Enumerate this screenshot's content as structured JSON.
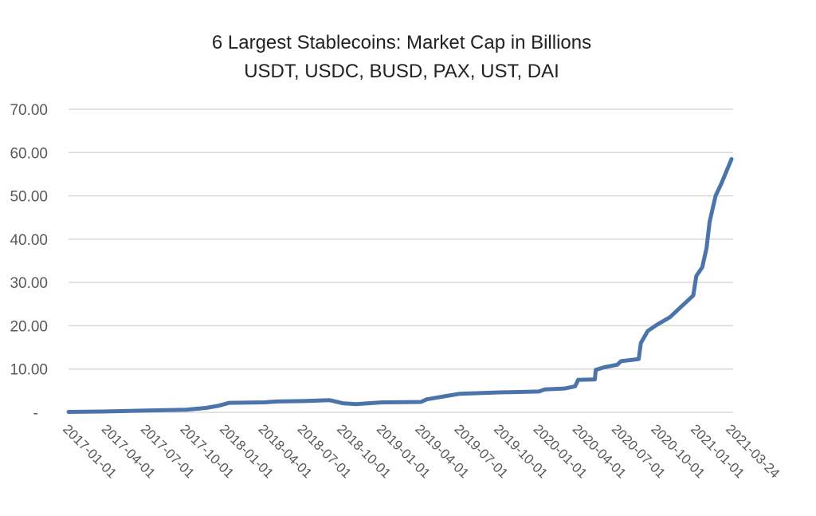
{
  "chart_data": {
    "type": "line",
    "title": "6 Largest Stablecoins: Market Cap in Billions",
    "subtitle": "USDT, USDC, BUSD, PAX, UST, DAI",
    "xlabel": "",
    "ylabel": "",
    "ylim": [
      0,
      70
    ],
    "yticks": [
      0,
      10,
      20,
      30,
      40,
      50,
      60,
      70
    ],
    "ytick_labels": [
      "-",
      "10.00",
      "20.00",
      "30.00",
      "40.00",
      "50.00",
      "60.00",
      "70.00"
    ],
    "xlim": [
      "2017-01-01",
      "2021-03-24"
    ],
    "xtick_labels": [
      "2017-01-01",
      "2017-04-01",
      "2017-07-01",
      "2017-10-01",
      "2018-01-01",
      "2018-04-01",
      "2018-07-01",
      "2018-10-01",
      "2019-01-01",
      "2019-04-01",
      "2019-07-01",
      "2019-10-01",
      "2020-01-01",
      "2020-04-01",
      "2020-07-01",
      "2020-10-01",
      "2021-01-01",
      "2021-03-24"
    ],
    "grid": "horizontal",
    "legend": "none",
    "line_color": "#4a74aa",
    "series": [
      {
        "x": [
          "2017-01-01",
          "2017-04-01",
          "2017-07-01",
          "2017-10-01",
          "2017-11-15",
          "2017-12-15",
          "2018-01-10",
          "2018-04-01",
          "2018-05-01",
          "2018-07-01",
          "2018-09-01",
          "2018-10-01",
          "2018-11-01",
          "2019-01-01",
          "2019-04-01",
          "2019-04-15",
          "2019-06-01",
          "2019-07-01",
          "2019-10-01",
          "2020-01-01",
          "2020-01-15",
          "2020-03-01",
          "2020-03-25",
          "2020-04-01",
          "2020-05-10",
          "2020-05-12",
          "2020-06-01",
          "2020-07-01",
          "2020-07-10",
          "2020-08-20",
          "2020-08-25",
          "2020-09-10",
          "2020-10-01",
          "2020-11-01",
          "2020-12-01",
          "2020-12-25",
          "2021-01-01",
          "2021-01-15",
          "2021-01-25",
          "2021-02-01",
          "2021-02-15",
          "2021-03-01",
          "2021-03-24"
        ],
        "values": [
          0.1,
          0.2,
          0.4,
          0.6,
          1.0,
          1.5,
          2.2,
          2.3,
          2.5,
          2.6,
          2.8,
          2.1,
          1.9,
          2.3,
          2.4,
          3.0,
          3.8,
          4.3,
          4.6,
          4.8,
          5.3,
          5.5,
          6.0,
          7.5,
          7.6,
          9.8,
          10.4,
          11.0,
          11.8,
          12.3,
          16.0,
          18.8,
          20.2,
          22.0,
          24.8,
          27.0,
          31.5,
          33.5,
          38.0,
          44.0,
          50.0,
          53.0,
          58.5
        ]
      }
    ]
  }
}
